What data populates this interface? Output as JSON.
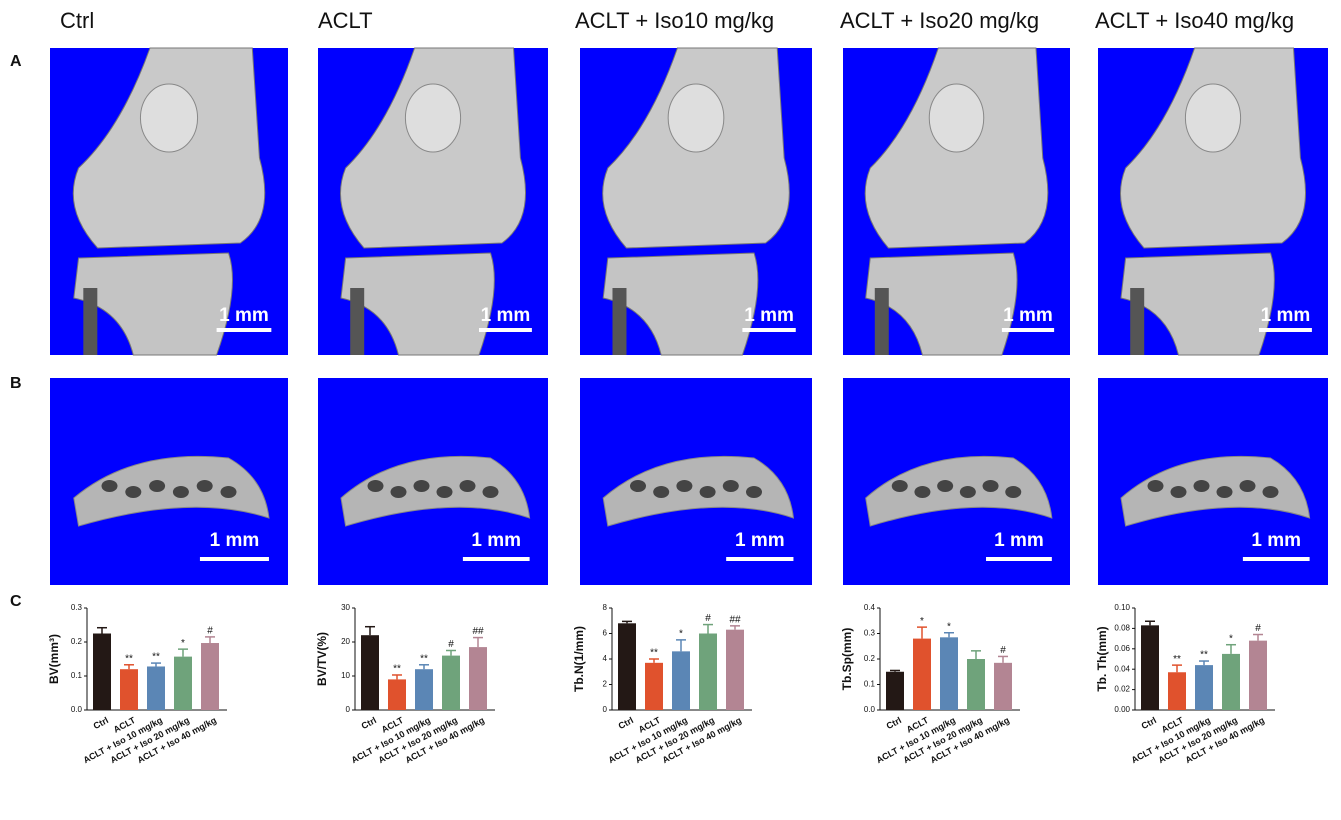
{
  "columns": [
    "Ctrl",
    "ACLT",
    "ACLT + Iso10 mg/kg",
    "ACLT + Iso20 mg/kg",
    "ACLT + Iso40 mg/kg"
  ],
  "panels": [
    "A",
    "B",
    "C"
  ],
  "scale_bar": "1 mm",
  "chart_data": [
    {
      "type": "bar",
      "y_label": "BV(mm³)",
      "categories": [
        "Ctrl",
        "ACLT",
        "ACLT + Iso 10 mg/kg",
        "ACLT + Iso 20 mg/kg",
        "ACLT + Iso 40 mg/kg"
      ],
      "values": [
        0.225,
        0.12,
        0.128,
        0.157,
        0.197
      ],
      "errors": [
        0.017,
        0.013,
        0.01,
        0.022,
        0.018
      ],
      "annotations": [
        null,
        "**",
        "**",
        "*",
        "#"
      ],
      "colors": [
        "#231815",
        "#e0522d",
        "#5b86b5",
        "#6fa37b",
        "#b38593"
      ],
      "ylim": [
        0,
        0.3
      ],
      "yticks": [
        {
          "value": 0,
          "label": "0.0"
        },
        0.1,
        0.2,
        0.3
      ]
    },
    {
      "type": "bar",
      "y_label": "BV/TV(%)",
      "categories": [
        "Ctrl",
        "ACLT",
        "ACLT + Iso 10 mg/kg",
        "ACLT + Iso 20 mg/kg",
        "ACLT + Iso 40 mg/kg"
      ],
      "values": [
        22,
        9,
        12,
        16,
        18.5
      ],
      "errors": [
        2.5,
        1.3,
        1.3,
        1.5,
        2.8
      ],
      "annotations": [
        null,
        "**",
        "**",
        "#",
        "##"
      ],
      "colors": [
        "#231815",
        "#e0522d",
        "#5b86b5",
        "#6fa37b",
        "#b38593"
      ],
      "ylim": [
        0,
        30
      ],
      "yticks": [
        0,
        10,
        20,
        30
      ]
    },
    {
      "type": "bar",
      "y_label": "Tb.N(1/mm)",
      "categories": [
        "Ctrl",
        "ACLT",
        "ACLT + Iso 10 mg/kg",
        "ACLT + Iso 20 mg/kg",
        "ACLT + Iso 40 mg/kg"
      ],
      "values": [
        6.8,
        3.7,
        4.6,
        6.0,
        6.3
      ],
      "errors": [
        0.15,
        0.3,
        0.9,
        0.7,
        0.3
      ],
      "annotations": [
        null,
        "**",
        "*",
        "#",
        "##"
      ],
      "colors": [
        "#231815",
        "#e0522d",
        "#5b86b5",
        "#6fa37b",
        "#b38593"
      ],
      "ylim": [
        0,
        8
      ],
      "yticks": [
        0,
        2,
        4,
        6,
        8
      ]
    },
    {
      "type": "bar",
      "y_label": "Tb.Sp(mm)",
      "categories": [
        "Ctrl",
        "ACLT",
        "ACLT + Iso 10 mg/kg",
        "ACLT + Iso 20 mg/kg",
        "ACLT + Iso 40 mg/kg"
      ],
      "values": [
        0.15,
        0.28,
        0.285,
        0.2,
        0.185
      ],
      "errors": [
        0.005,
        0.045,
        0.018,
        0.032,
        0.025
      ],
      "annotations": [
        null,
        "*",
        "*",
        null,
        "#"
      ],
      "colors": [
        "#231815",
        "#e0522d",
        "#5b86b5",
        "#6fa37b",
        "#b38593"
      ],
      "ylim": [
        0,
        0.4
      ],
      "yticks": [
        {
          "value": 0,
          "label": "0.0"
        },
        0.1,
        0.2,
        0.3,
        0.4
      ]
    },
    {
      "type": "bar",
      "y_label": "Tb. Th(mm)",
      "categories": [
        "Ctrl",
        "ACLT",
        "ACLT + Iso 10 mg/kg",
        "ACLT + Iso 20 mg/kg",
        "ACLT + Iso 40 mg/kg"
      ],
      "values": [
        0.083,
        0.037,
        0.044,
        0.055,
        0.068
      ],
      "errors": [
        0.004,
        0.007,
        0.004,
        0.009,
        0.006
      ],
      "annotations": [
        null,
        "**",
        "**",
        "*",
        "#"
      ],
      "colors": [
        "#231815",
        "#e0522d",
        "#5b86b5",
        "#6fa37b",
        "#b38593"
      ],
      "ylim": [
        0,
        0.1
      ],
      "yticks": [
        {
          "value": 0,
          "label": "0.00"
        },
        0.02,
        0.04,
        0.06,
        0.08,
        {
          "value": 0.1,
          "label": "0.10"
        }
      ]
    }
  ]
}
